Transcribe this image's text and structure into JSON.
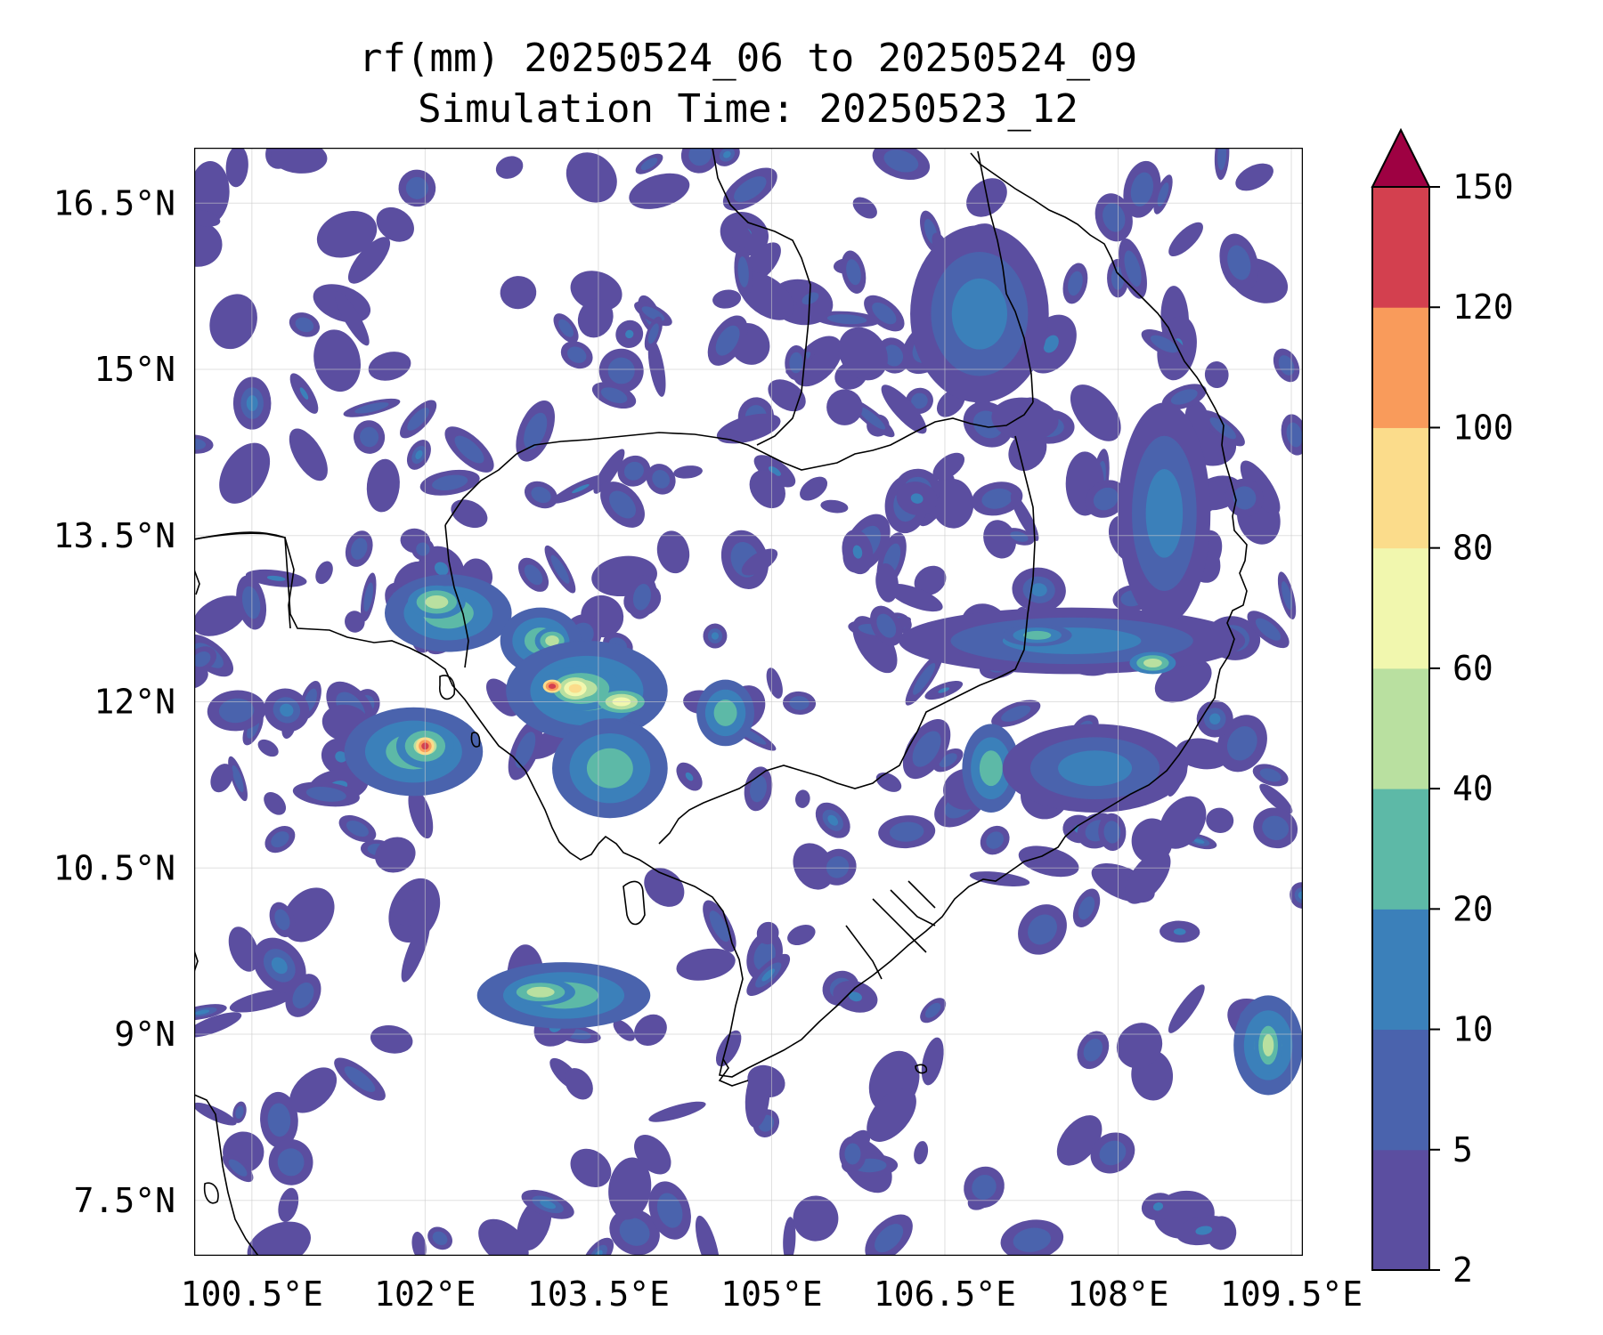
{
  "title": {
    "line1": "rf(mm) 20250524_06 to 20250524_09",
    "line2": "Simulation Time: 20250523_12"
  },
  "map": {
    "lon_range": [
      100.0,
      109.6
    ],
    "lat_range": [
      7.0,
      17.0
    ],
    "xticks": [
      {
        "value": 100.5,
        "label": "100.5°E"
      },
      {
        "value": 102.0,
        "label": "102°E"
      },
      {
        "value": 103.5,
        "label": "103.5°E"
      },
      {
        "value": 105.0,
        "label": "105°E"
      },
      {
        "value": 106.5,
        "label": "106.5°E"
      },
      {
        "value": 108.0,
        "label": "108°E"
      },
      {
        "value": 109.5,
        "label": "109.5°E"
      }
    ],
    "yticks": [
      {
        "value": 16.5,
        "label": "16.5°N"
      },
      {
        "value": 15.0,
        "label": "15°N"
      },
      {
        "value": 13.5,
        "label": "13.5°N"
      },
      {
        "value": 12.0,
        "label": "12°N"
      },
      {
        "value": 10.5,
        "label": "10.5°N"
      },
      {
        "value": 9.0,
        "label": "9°N"
      },
      {
        "value": 7.5,
        "label": "7.5°N"
      }
    ],
    "grid": true
  },
  "colorbar": {
    "levels": [
      2,
      5,
      10,
      20,
      40,
      60,
      80,
      100,
      120,
      150
    ],
    "labels": [
      "2",
      "5",
      "10",
      "20",
      "40",
      "60",
      "80",
      "100",
      "120",
      "150"
    ],
    "colors": [
      "#5b4ea0",
      "#4a63ad",
      "#3b80ba",
      "#5db9a7",
      "#b9e0a0",
      "#f1f7ae",
      "#fbdc8b",
      "#f99b5b",
      "#d3404f"
    ],
    "extend_color": "#9e0142"
  },
  "rain_cells": [
    {
      "lon": 102.2,
      "lat": 12.8,
      "rx": 0.55,
      "ry": 0.35,
      "level": 3
    },
    {
      "lon": 102.1,
      "lat": 12.9,
      "rx": 0.25,
      "ry": 0.15,
      "level": 4
    },
    {
      "lon": 103.0,
      "lat": 12.55,
      "rx": 0.35,
      "ry": 0.3,
      "level": 3
    },
    {
      "lon": 103.1,
      "lat": 12.55,
      "rx": 0.15,
      "ry": 0.12,
      "level": 4
    },
    {
      "lon": 103.4,
      "lat": 12.1,
      "rx": 0.7,
      "ry": 0.45,
      "level": 3
    },
    {
      "lon": 103.35,
      "lat": 12.12,
      "rx": 0.35,
      "ry": 0.2,
      "level": 4
    },
    {
      "lon": 103.3,
      "lat": 12.12,
      "rx": 0.14,
      "ry": 0.1,
      "level": 6
    },
    {
      "lon": 103.1,
      "lat": 12.14,
      "rx": 0.08,
      "ry": 0.06,
      "level": 8
    },
    {
      "lon": 103.7,
      "lat": 12.0,
      "rx": 0.2,
      "ry": 0.1,
      "level": 5
    },
    {
      "lon": 101.9,
      "lat": 11.55,
      "rx": 0.6,
      "ry": 0.4,
      "level": 3
    },
    {
      "lon": 102.0,
      "lat": 11.6,
      "rx": 0.25,
      "ry": 0.2,
      "level": 4
    },
    {
      "lon": 102.0,
      "lat": 11.6,
      "rx": 0.08,
      "ry": 0.08,
      "level": 8
    },
    {
      "lon": 103.6,
      "lat": 11.4,
      "rx": 0.5,
      "ry": 0.45,
      "level": 3
    },
    {
      "lon": 104.6,
      "lat": 11.9,
      "rx": 0.25,
      "ry": 0.3,
      "level": 3
    },
    {
      "lon": 103.2,
      "lat": 9.35,
      "rx": 0.75,
      "ry": 0.3,
      "level": 3
    },
    {
      "lon": 103.0,
      "lat": 9.38,
      "rx": 0.3,
      "ry": 0.12,
      "level": 4
    },
    {
      "lon": 107.6,
      "lat": 12.55,
      "rx": 1.5,
      "ry": 0.3,
      "level": 2
    },
    {
      "lon": 107.3,
      "lat": 12.6,
      "rx": 0.3,
      "ry": 0.1,
      "level": 3
    },
    {
      "lon": 108.3,
      "lat": 12.35,
      "rx": 0.2,
      "ry": 0.1,
      "level": 4
    },
    {
      "lon": 109.3,
      "lat": 8.9,
      "rx": 0.3,
      "ry": 0.45,
      "level": 3
    },
    {
      "lon": 109.3,
      "lat": 8.9,
      "rx": 0.12,
      "ry": 0.25,
      "level": 4
    },
    {
      "lon": 106.9,
      "lat": 11.4,
      "rx": 0.25,
      "ry": 0.4,
      "level": 3
    },
    {
      "lon": 108.4,
      "lat": 13.7,
      "rx": 0.4,
      "ry": 1.0,
      "level": 2
    },
    {
      "lon": 107.8,
      "lat": 11.4,
      "rx": 0.8,
      "ry": 0.4,
      "level": 2
    },
    {
      "lon": 106.8,
      "lat": 15.5,
      "rx": 0.6,
      "ry": 0.8,
      "level": 2
    }
  ]
}
